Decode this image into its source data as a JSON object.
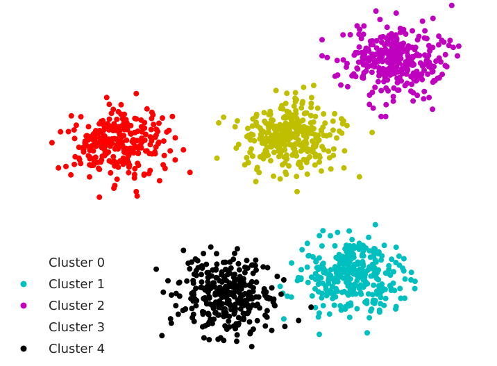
{
  "chart_data": {
    "type": "scatter",
    "title": "",
    "xlabel": "",
    "ylabel": "",
    "xlim": [
      0,
      10
    ],
    "ylim": [
      -3.3,
      4.2
    ],
    "grid": false,
    "legend_position": "bottom-left",
    "series": [
      {
        "name": "Cluster 0",
        "color": "#ff0000",
        "marker_in_legend": false,
        "center": [
          2.2,
          1.3
        ],
        "spread": [
          0.52,
          0.36
        ],
        "count": 280
      },
      {
        "name": "Cluster 1",
        "color": "#00bfbf",
        "marker_in_legend": true,
        "center": [
          7.1,
          -1.55
        ],
        "spread": [
          0.55,
          0.4
        ],
        "count": 320
      },
      {
        "name": "Cluster 2",
        "color": "#bf00bf",
        "marker_in_legend": true,
        "center": [
          8.05,
          3.05
        ],
        "spread": [
          0.52,
          0.37
        ],
        "count": 340
      },
      {
        "name": "Cluster 3",
        "color": "#bfbf00",
        "marker_in_legend": false,
        "center": [
          5.85,
          1.45
        ],
        "spread": [
          0.53,
          0.37
        ],
        "count": 330
      },
      {
        "name": "Cluster 4",
        "color": "#000000",
        "marker_in_legend": true,
        "center": [
          4.5,
          -1.95
        ],
        "spread": [
          0.55,
          0.4
        ],
        "count": 310
      }
    ]
  }
}
